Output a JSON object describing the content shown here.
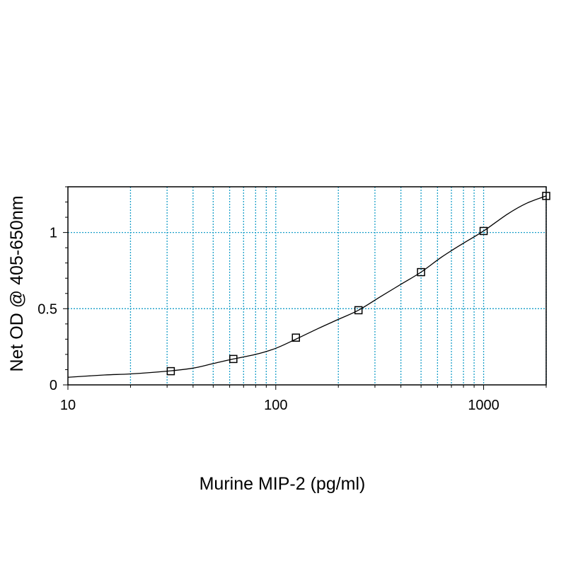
{
  "chart_data": {
    "type": "scatter",
    "title": "",
    "xlabel": "Murine MIP-2 (pg/ml)",
    "ylabel": "Net OD @ 405-650nm",
    "x_scale": "log",
    "xlim": [
      10,
      2000
    ],
    "ylim": [
      0,
      1.3
    ],
    "x_ticks": [
      10,
      100,
      1000
    ],
    "x_tick_labels": [
      "10",
      "100",
      "1000"
    ],
    "y_ticks": [
      0,
      0.5,
      1
    ],
    "y_tick_labels": [
      "0",
      "0.5",
      "1"
    ],
    "grid": true,
    "grid_color": "#1a9fc9",
    "series": [
      {
        "marker": "square",
        "x": [
          31.25,
          62.5,
          125,
          250,
          500,
          1000,
          2000
        ],
        "y": [
          0.09,
          0.17,
          0.31,
          0.49,
          0.74,
          1.01,
          1.24
        ]
      }
    ],
    "fit_curve": {
      "x": [
        10,
        15,
        20,
        30,
        40,
        50,
        62.5,
        80,
        100,
        125,
        160,
        200,
        250,
        320,
        400,
        500,
        630,
        800,
        1000,
        1300,
        1600,
        2000
      ],
      "y": [
        0.05,
        0.065,
        0.072,
        0.09,
        0.11,
        0.14,
        0.17,
        0.2,
        0.24,
        0.3,
        0.37,
        0.43,
        0.49,
        0.58,
        0.66,
        0.74,
        0.84,
        0.93,
        1.01,
        1.12,
        1.19,
        1.24
      ]
    }
  }
}
